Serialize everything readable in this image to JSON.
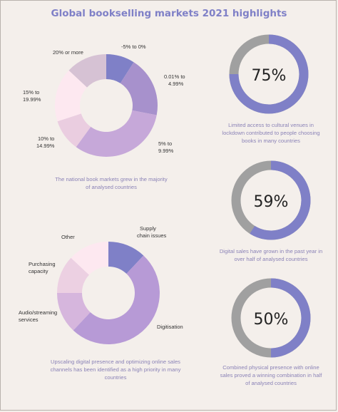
{
  "header": {
    "title": "Global bookselling markets 2021 highlights"
  },
  "chart_data": [
    {
      "type": "pie",
      "donut": true,
      "categories": [
        "-5% to 0%",
        "0.01% to 4.99%",
        "5% to 9.99%",
        "10% to 14.99%",
        "15% to 19.99%",
        "20% or more"
      ],
      "values": [
        9,
        19,
        32,
        10,
        17,
        13
      ],
      "colors": [
        "#7f80c7",
        "#a791cc",
        "#c6a8d9",
        "#eacde0",
        "#fde8f0",
        "#d6c2d4"
      ],
      "caption": "The national book markets grew in the majority of analysed countries"
    },
    {
      "type": "pie",
      "donut": true,
      "categories": [
        "Supply chain issues",
        "Digitisation",
        "Audio/streaming services",
        "Purchasing capacity",
        "Other"
      ],
      "values": [
        12,
        50,
        13,
        12,
        13
      ],
      "colors": [
        "#7f80c7",
        "#b79ad6",
        "#d6b6dd",
        "#ecd0e2",
        "#fde8f0"
      ],
      "caption": "Upscaling digital presence and optimizing online sales channels has been identified as a high priority in many countries"
    },
    {
      "type": "pie",
      "donut": true,
      "categories": [
        "Limited access to cultural venues"
      ],
      "values": [
        75
      ],
      "label": "75%",
      "colors": [
        "#7f80c7",
        "#a0a0a0"
      ],
      "caption": "Limited access to cultural venues  in lockdown contributed to people choosing books in many countries"
    },
    {
      "type": "pie",
      "donut": true,
      "categories": [
        "Digital sales grew"
      ],
      "values": [
        59
      ],
      "label": "59%",
      "colors": [
        "#7f80c7",
        "#a0a0a0"
      ],
      "caption": "Digital sales have grown in the past year in over half of analysed countries"
    },
    {
      "type": "pie",
      "donut": true,
      "categories": [
        "Combined physical presence with online sales"
      ],
      "values": [
        50
      ],
      "label": "50%",
      "colors": [
        "#7f80c7",
        "#a0a0a0"
      ],
      "caption": "Combined physical presence with online sales proved a winning combination in half of analysed countries"
    }
  ]
}
